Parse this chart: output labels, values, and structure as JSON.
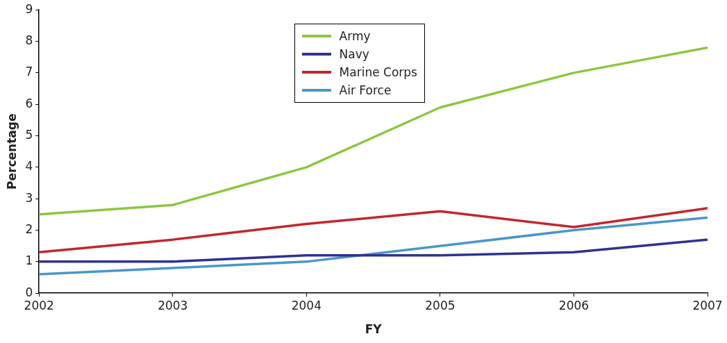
{
  "chart_data": {
    "type": "line",
    "xlabel": "FY",
    "ylabel": "Percentage",
    "x": [
      2002,
      2003,
      2004,
      2005,
      2006,
      2007
    ],
    "series": [
      {
        "name": "Army",
        "color": "#8dc63f",
        "values": [
          2.5,
          2.8,
          4.0,
          5.9,
          7.0,
          7.8
        ]
      },
      {
        "name": "Navy",
        "color": "#2e3192",
        "values": [
          1.0,
          1.0,
          1.2,
          1.2,
          1.3,
          1.7
        ]
      },
      {
        "name": "Marine Corps",
        "color": "#c1272d",
        "values": [
          1.3,
          1.7,
          2.2,
          2.6,
          2.1,
          2.7
        ]
      },
      {
        "name": "Air Force",
        "color": "#4a96cc",
        "values": [
          0.6,
          0.8,
          1.0,
          1.5,
          2.0,
          2.4
        ]
      }
    ],
    "xlim": [
      2002,
      2007
    ],
    "xticks": [
      2002,
      2003,
      2004,
      2005,
      2006,
      2007
    ],
    "ylim": [
      0,
      9
    ],
    "yticks": [
      0,
      1,
      2,
      3,
      4,
      5,
      6,
      7,
      8,
      9
    ],
    "grid": false,
    "legend": "top",
    "marker": "none",
    "line_style": "solid"
  }
}
